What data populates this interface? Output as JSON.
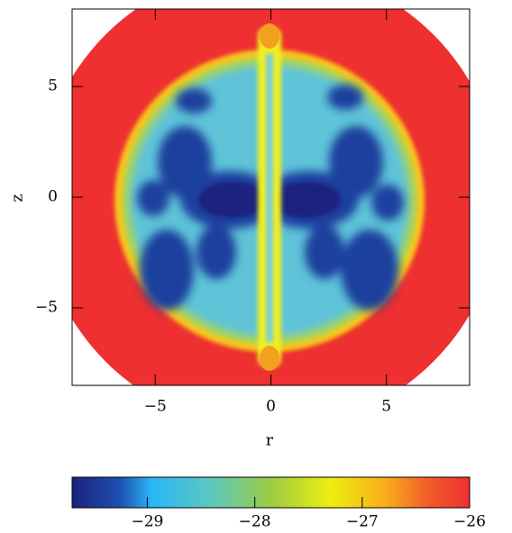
{
  "chart_data": {
    "type": "field-map",
    "xlabel": "r",
    "ylabel": "z",
    "xlim": [
      -8.6,
      8.6
    ],
    "ylim": [
      -8.5,
      8.5
    ],
    "xticks": [
      {
        "value": -5,
        "label": "−5"
      },
      0,
      5
    ],
    "yticks": [
      {
        "value": -5,
        "label": "−5"
      },
      0,
      5
    ],
    "colorbar": {
      "lim": [
        -29.7,
        -26
      ],
      "ticks": [
        {
          "value": -29,
          "label": "−29"
        },
        {
          "value": -28,
          "label": "−28"
        },
        {
          "value": -27,
          "label": "−27"
        },
        {
          "value": -26,
          "label": "−26"
        }
      ]
    }
  }
}
